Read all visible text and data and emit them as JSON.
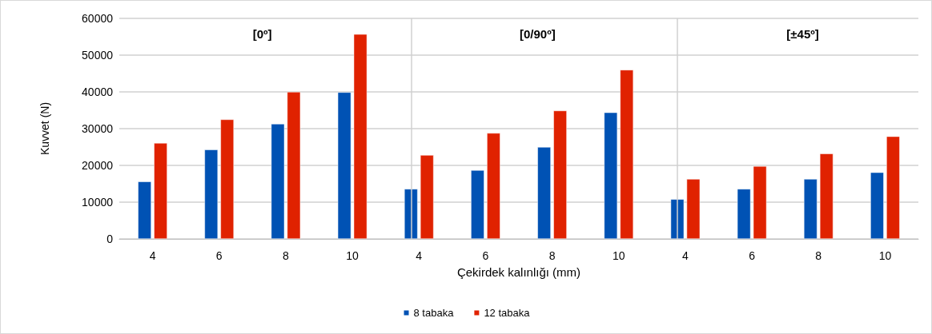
{
  "chart_data": {
    "type": "bar",
    "xlabel": "Çekirdek kalınlığı (mm)",
    "ylabel": "Kuvvet (N)",
    "categories": [
      "4",
      "6",
      "8",
      "10",
      "4",
      "6",
      "8",
      "10",
      "4",
      "6",
      "8",
      "10"
    ],
    "series": [
      {
        "name": "8 tabaka",
        "color": "#0052b4",
        "values": [
          15600,
          24300,
          31300,
          39900,
          13600,
          18700,
          25000,
          34400,
          10800,
          13600,
          16300,
          18100
        ]
      },
      {
        "name": "12 tabaka",
        "color": "#e02200",
        "values": [
          26100,
          32500,
          40000,
          55700,
          22800,
          28800,
          34900,
          46000,
          16300,
          19800,
          23200,
          27900
        ]
      }
    ],
    "ylim": [
      0,
      60000
    ],
    "yticks": [
      0,
      10000,
      20000,
      30000,
      40000,
      50000,
      60000
    ],
    "grid": "y",
    "legend": "bottom",
    "annotations": [
      "[0º]",
      "[0/90º]",
      "[±45º]"
    ]
  }
}
